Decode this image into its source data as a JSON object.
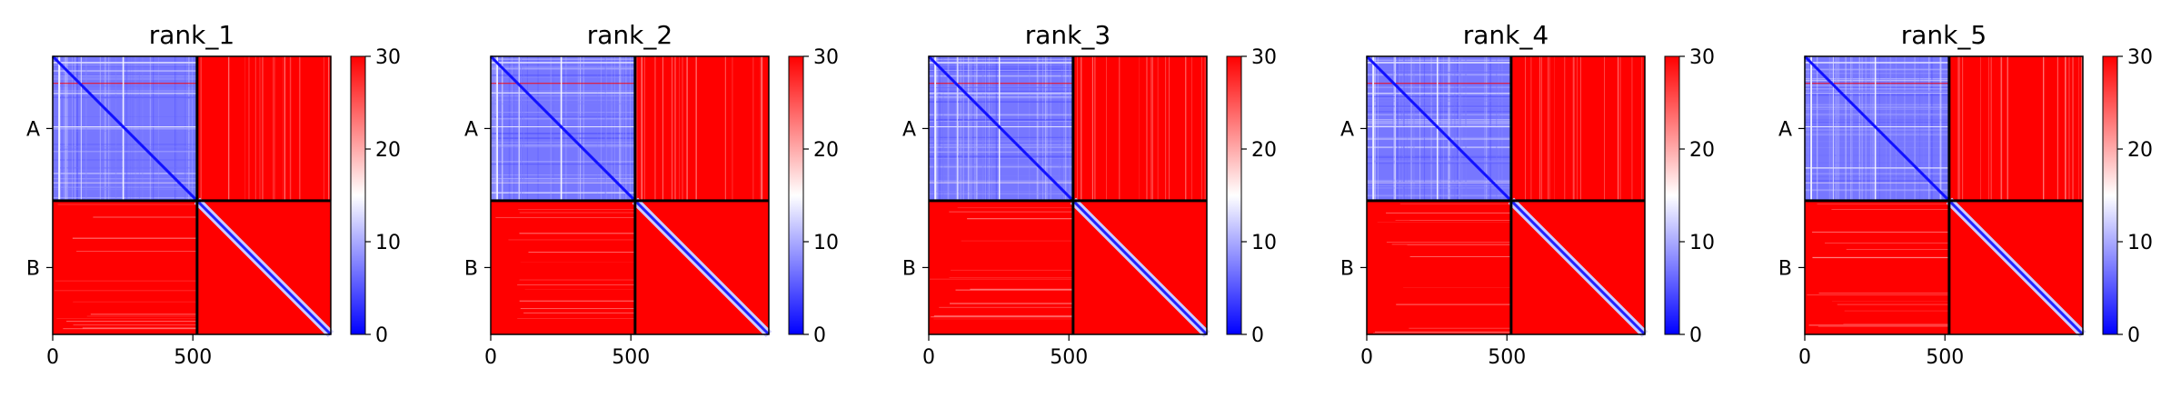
{
  "chart_data": {
    "type": "heatmap",
    "colormap": {
      "name": "bwr",
      "low": "#0000ff",
      "mid": "#ffffff",
      "high": "#ff0000"
    },
    "colorbar": {
      "vmin": 0,
      "vmax": 30,
      "ticks": [
        0,
        10,
        20,
        30
      ]
    },
    "chains": [
      {
        "label": "A",
        "start": 0,
        "end": 515
      },
      {
        "label": "B",
        "start": 515,
        "end": 992
      }
    ],
    "xlim": [
      0,
      992
    ],
    "xticks": [
      0,
      500
    ],
    "ytick_labels": [
      "A",
      "B"
    ],
    "grid": false,
    "panels": [
      {
        "title": "rank_1",
        "pattern_seed": 11
      },
      {
        "title": "rank_2",
        "pattern_seed": 23
      },
      {
        "title": "rank_3",
        "pattern_seed": 37
      },
      {
        "title": "rank_4",
        "pattern_seed": 41
      },
      {
        "title": "rank_5",
        "pattern_seed": 53
      }
    ]
  }
}
